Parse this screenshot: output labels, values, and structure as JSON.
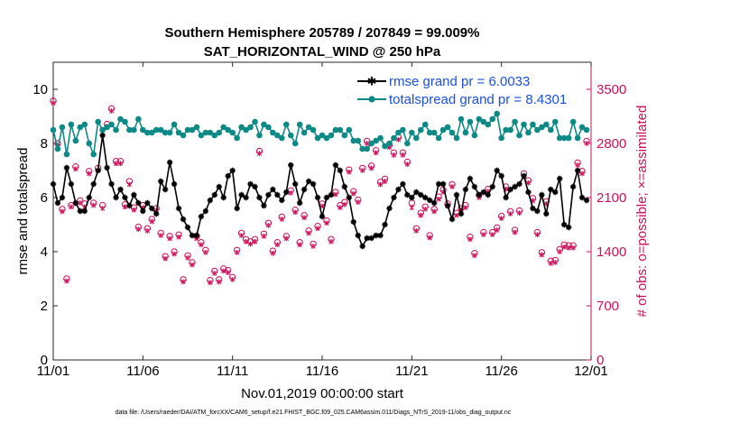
{
  "chart_data": {
    "type": "line",
    "title": "Southern Hemisphere 205789 / 207849 = 99.009%",
    "subtitle": "SAT_HORIZONTAL_WIND @ 250 hPa",
    "xlabel": "Nov.01,2019 00:00:00 start",
    "ylabel": "rmse and totalspread",
    "ylabel_right": "# of obs: o=possible; ×=assimilated",
    "footnote": "data file: /Users/raeder/DAI/ATM_forcXX/CAM6_setup/f.e21.FHIST_BGC.f09_025.CAM6assim.011/Diags_NTrS_2019-11/obs_diag_output.nc",
    "x_tick_labels": [
      "11/01",
      "11/06",
      "11/11",
      "11/16",
      "11/21",
      "11/26",
      "12/01"
    ],
    "x_tick_values": [
      0,
      5,
      10,
      15,
      20,
      25,
      30
    ],
    "xlim": [
      0,
      30
    ],
    "ylim": [
      0,
      11
    ],
    "y_ticks": [
      0,
      2,
      4,
      6,
      8,
      10
    ],
    "ylim_right": [
      0,
      3850
    ],
    "y_ticks_right": [
      0,
      700,
      1400,
      2100,
      2800,
      3500
    ],
    "legend_position": "top-right",
    "colors": {
      "rmse": "#000000",
      "spread": "#0e8a86",
      "obs": "#cc0f5a",
      "legend_text": "#1a4fe0"
    },
    "series": [
      {
        "name": "rmse grand pr = 6.0033",
        "color": "#000000",
        "x": [
          0.0,
          0.25,
          0.5,
          0.75,
          1.0,
          1.25,
          1.5,
          1.75,
          2.0,
          2.25,
          2.5,
          2.75,
          3.0,
          3.25,
          3.5,
          3.75,
          4.0,
          4.25,
          4.5,
          4.75,
          5.0,
          5.25,
          5.5,
          5.75,
          6.0,
          6.25,
          6.5,
          6.75,
          7.0,
          7.25,
          7.5,
          7.75,
          8.0,
          8.25,
          8.5,
          8.75,
          9.0,
          9.25,
          9.5,
          9.75,
          10.0,
          10.25,
          10.5,
          10.75,
          11.0,
          11.25,
          11.5,
          11.75,
          12.0,
          12.25,
          12.5,
          12.75,
          13.0,
          13.25,
          13.5,
          13.75,
          14.0,
          14.25,
          14.5,
          14.75,
          15.0,
          15.25,
          15.5,
          15.75,
          16.0,
          16.25,
          16.5,
          16.75,
          17.0,
          17.25,
          17.5,
          17.75,
          18.0,
          18.25,
          18.5,
          18.75,
          19.0,
          19.25,
          19.5,
          19.75,
          20.0,
          20.25,
          20.5,
          20.75,
          21.0,
          21.25,
          21.5,
          21.75,
          22.0,
          22.25,
          22.5,
          22.75,
          23.0,
          23.25,
          23.5,
          23.75,
          24.0,
          24.25,
          24.5,
          24.75,
          25.0,
          25.25,
          25.5,
          25.75,
          26.0,
          26.25,
          26.5,
          26.75,
          27.0,
          27.25,
          27.5,
          27.75,
          28.0,
          28.25,
          28.5,
          28.75,
          29.0,
          29.25,
          29.5,
          29.75
        ],
        "values": [
          6.5,
          5.8,
          6.0,
          7.1,
          6.5,
          5.8,
          5.5,
          5.5,
          6.0,
          6.5,
          7.0,
          8.3,
          7.1,
          6.5,
          6.0,
          6.3,
          6.0,
          5.7,
          6.1,
          5.8,
          5.5,
          5.8,
          5.6,
          5.4,
          6.6,
          6.3,
          7.3,
          6.5,
          5.6,
          5.2,
          4.9,
          4.6,
          4.6,
          5.3,
          5.5,
          5.9,
          6.1,
          6.4,
          6.0,
          6.8,
          7.0,
          5.6,
          6.1,
          6.0,
          6.5,
          6.4,
          6.0,
          5.7,
          6.1,
          6.3,
          6.1,
          5.9,
          6.2,
          7.2,
          6.5,
          5.8,
          6.3,
          6.6,
          6.5,
          6.0,
          5.3,
          6.0,
          6.1,
          7.2,
          7.0,
          6.4,
          6.0,
          5.1,
          4.6,
          4.2,
          4.5,
          4.5,
          4.6,
          4.6,
          5.0,
          5.6,
          6.0,
          6.3,
          6.5,
          6.1,
          6.0,
          6.2,
          6.1,
          6.0,
          5.9,
          5.8,
          6.5,
          6.5,
          5.7,
          5.2,
          6.1,
          5.4,
          6.3,
          6.7,
          6.4,
          6.1,
          6.2,
          6.1,
          6.4,
          7.0,
          6.8,
          6.0,
          6.3,
          6.4,
          6.5,
          6.8,
          6.2,
          5.6,
          5.5,
          6.1,
          5.4,
          6.3,
          6.2,
          6.7,
          5.0,
          4.9,
          6.4,
          7.0,
          6.0,
          5.9
        ]
      },
      {
        "name": "totalspread grand pr = 8.4301",
        "color": "#0e8a86",
        "x": [
          0.0,
          0.25,
          0.5,
          0.75,
          1.0,
          1.25,
          1.5,
          1.75,
          2.0,
          2.25,
          2.5,
          2.75,
          3.0,
          3.25,
          3.5,
          3.75,
          4.0,
          4.25,
          4.5,
          4.75,
          5.0,
          5.25,
          5.5,
          5.75,
          6.0,
          6.25,
          6.5,
          6.75,
          7.0,
          7.25,
          7.5,
          7.75,
          8.0,
          8.25,
          8.5,
          8.75,
          9.0,
          9.25,
          9.5,
          9.75,
          10.0,
          10.25,
          10.5,
          10.75,
          11.0,
          11.25,
          11.5,
          11.75,
          12.0,
          12.25,
          12.5,
          12.75,
          13.0,
          13.25,
          13.5,
          13.75,
          14.0,
          14.25,
          14.5,
          14.75,
          15.0,
          15.25,
          15.5,
          15.75,
          16.0,
          16.25,
          16.5,
          16.75,
          17.0,
          17.25,
          17.5,
          17.75,
          18.0,
          18.25,
          18.5,
          18.75,
          19.0,
          19.25,
          19.5,
          19.75,
          20.0,
          20.25,
          20.5,
          20.75,
          21.0,
          21.25,
          21.5,
          21.75,
          22.0,
          22.25,
          22.5,
          22.75,
          23.0,
          23.25,
          23.5,
          23.75,
          24.0,
          24.25,
          24.5,
          24.75,
          25.0,
          25.25,
          25.5,
          25.75,
          26.0,
          26.25,
          26.5,
          26.75,
          27.0,
          27.25,
          27.5,
          27.75,
          28.0,
          28.25,
          28.5,
          28.75,
          29.0,
          29.25,
          29.5,
          29.75
        ],
        "values": [
          8.5,
          7.8,
          8.6,
          7.6,
          8.7,
          8.1,
          8.6,
          8.7,
          8.0,
          7.6,
          8.8,
          8.5,
          8.6,
          8.7,
          8.5,
          8.9,
          8.8,
          8.5,
          8.5,
          8.9,
          8.5,
          8.4,
          8.4,
          8.5,
          8.5,
          8.4,
          8.4,
          8.7,
          8.4,
          8.3,
          8.5,
          8.5,
          8.6,
          8.3,
          8.4,
          8.4,
          8.3,
          8.4,
          8.6,
          8.5,
          8.4,
          8.2,
          8.6,
          8.5,
          8.6,
          8.8,
          8.3,
          8.7,
          8.6,
          8.4,
          8.3,
          8.2,
          8.7,
          8.3,
          8.0,
          8.7,
          8.4,
          8.6,
          8.5,
          8.2,
          8.3,
          8.2,
          8.3,
          8.5,
          8.5,
          8.3,
          8.5,
          8.1,
          8.1,
          7.8,
          7.8,
          8.0,
          8.1,
          8.2,
          7.9,
          8.0,
          8.2,
          8.4,
          8.5,
          8.0,
          8.4,
          8.2,
          8.5,
          8.7,
          8.4,
          8.4,
          8.2,
          8.5,
          8.6,
          8.4,
          8.2,
          8.9,
          8.4,
          8.8,
          8.3,
          8.9,
          8.8,
          8.7,
          8.9,
          9.1,
          8.2,
          8.5,
          8.5,
          8.8,
          8.3,
          8.7,
          8.4,
          8.7,
          8.5,
          8.6,
          8.7,
          8.5,
          8.8,
          8.2,
          8.2,
          8.2,
          8.8,
          8.2,
          8.6,
          8.5
        ]
      },
      {
        "name": "obs possible",
        "axis": "right",
        "marker": "circle",
        "x": [
          0.0,
          0.25,
          0.5,
          0.75,
          1.0,
          1.25,
          1.5,
          1.75,
          2.0,
          2.25,
          2.5,
          2.75,
          3.0,
          3.25,
          3.5,
          3.75,
          4.0,
          4.25,
          4.5,
          4.75,
          5.0,
          5.25,
          5.5,
          5.75,
          6.0,
          6.25,
          6.5,
          6.75,
          7.0,
          7.25,
          7.5,
          7.75,
          8.0,
          8.25,
          8.5,
          8.75,
          9.0,
          9.25,
          9.5,
          9.75,
          10.0,
          10.25,
          10.5,
          10.75,
          11.0,
          11.25,
          11.5,
          11.75,
          12.0,
          12.25,
          12.5,
          12.75,
          13.0,
          13.25,
          13.5,
          13.75,
          14.0,
          14.25,
          14.5,
          14.75,
          15.0,
          15.25,
          15.5,
          15.75,
          16.0,
          16.25,
          16.5,
          16.75,
          17.0,
          17.25,
          17.5,
          17.75,
          18.0,
          18.25,
          18.5,
          18.75,
          19.0,
          19.25,
          19.5,
          19.75,
          20.0,
          20.25,
          20.5,
          20.75,
          21.0,
          21.25,
          21.5,
          21.75,
          22.0,
          22.25,
          22.5,
          22.75,
          23.0,
          23.25,
          23.5,
          23.75,
          24.0,
          24.25,
          24.5,
          24.75,
          25.0,
          25.25,
          25.5,
          25.75,
          26.0,
          26.25,
          26.5,
          26.75,
          27.0,
          27.25,
          27.5,
          27.75,
          28.0,
          28.25,
          28.5,
          28.75,
          29.0,
          29.25,
          29.5,
          29.75
        ],
        "values": [
          3350,
          2800,
          1950,
          1050,
          2000,
          2500,
          2060,
          2020,
          2440,
          2030,
          2480,
          2000,
          3050,
          3250,
          2570,
          2570,
          2010,
          2310,
          1970,
          1720,
          2000,
          1700,
          1820,
          1960,
          1640,
          1340,
          1600,
          1400,
          1620,
          1040,
          1350,
          1260,
          1600,
          1520,
          1420,
          1030,
          1150,
          1040,
          1180,
          1160,
          1070,
          1420,
          1640,
          1560,
          1530,
          1560,
          2700,
          1630,
          1770,
          1410,
          1520,
          1850,
          1600,
          2190,
          1940,
          1520,
          1870,
          1670,
          1500,
          1730,
          2020,
          1800,
          1560,
          2170,
          2000,
          2040,
          2460,
          2180,
          2070,
          2480,
          2830,
          2510,
          2710,
          2300,
          2340,
          2780,
          2680,
          2880,
          2680,
          2560,
          2030,
          1700,
          1900,
          1980,
          1610,
          1950,
          2110,
          2200,
          2020,
          2270,
          1900,
          1960,
          2000,
          1590,
          1380,
          2130,
          1650,
          2210,
          1650,
          1710,
          1860,
          2240,
          1920,
          1680,
          1930,
          2410,
          2320,
          2090,
          1650,
          1390,
          2050,
          1280,
          1290,
          1430,
          1490,
          1480,
          1480,
          2550,
          2440,
          2830
        ]
      },
      {
        "name": "obs assimilated",
        "axis": "right",
        "marker": "x",
        "x": [
          0.0,
          0.25,
          0.5,
          0.75,
          1.0,
          1.25,
          1.5,
          1.75,
          2.0,
          2.25,
          2.5,
          2.75,
          3.0,
          3.25,
          3.5,
          3.75,
          4.0,
          4.25,
          4.5,
          4.75,
          5.0,
          5.25,
          5.5,
          5.75,
          6.0,
          6.25,
          6.5,
          6.75,
          7.0,
          7.25,
          7.5,
          7.75,
          8.0,
          8.25,
          8.5,
          8.75,
          9.0,
          9.25,
          9.5,
          9.75,
          10.0,
          10.25,
          10.5,
          10.75,
          11.0,
          11.25,
          11.5,
          11.75,
          12.0,
          12.25,
          12.5,
          12.75,
          13.0,
          13.25,
          13.5,
          13.75,
          14.0,
          14.25,
          14.5,
          14.75,
          15.0,
          15.25,
          15.5,
          15.75,
          16.0,
          16.25,
          16.5,
          16.75,
          17.0,
          17.25,
          17.5,
          17.75,
          18.0,
          18.25,
          18.5,
          18.75,
          19.0,
          19.25,
          19.5,
          19.75,
          20.0,
          20.25,
          20.5,
          20.75,
          21.0,
          21.25,
          21.5,
          21.75,
          22.0,
          22.25,
          22.5,
          22.75,
          23.0,
          23.25,
          23.5,
          23.75,
          24.0,
          24.25,
          24.5,
          24.75,
          25.0,
          25.25,
          25.5,
          25.75,
          26.0,
          26.25,
          26.5,
          26.75,
          27.0,
          27.25,
          27.5,
          27.75,
          28.0,
          28.25,
          28.5,
          28.75,
          29.0,
          29.25,
          29.5,
          29.75
        ],
        "values": [
          3320,
          2760,
          1920,
          1020,
          1980,
          2470,
          2030,
          1980,
          2410,
          2000,
          2450,
          1960,
          3020,
          3220,
          2540,
          2540,
          1980,
          2270,
          1940,
          1690,
          1970,
          1670,
          1790,
          1930,
          1610,
          1310,
          1570,
          1370,
          1590,
          1010,
          1320,
          1230,
          1570,
          1490,
          1390,
          1000,
          1120,
          1010,
          1150,
          1130,
          1040,
          1390,
          1610,
          1530,
          1500,
          1530,
          2670,
          1600,
          1740,
          1380,
          1490,
          1820,
          1570,
          2160,
          1910,
          1490,
          1840,
          1640,
          1470,
          1700,
          1990,
          1770,
          1530,
          2140,
          1970,
          2010,
          2430,
          2150,
          2040,
          2450,
          2800,
          2480,
          2680,
          2270,
          2310,
          2750,
          2650,
          2850,
          2650,
          2530,
          1970,
          1670,
          1870,
          1950,
          1580,
          1920,
          2080,
          2170,
          1990,
          2240,
          1870,
          1930,
          1970,
          1560,
          1350,
          2100,
          1620,
          2180,
          1620,
          1680,
          1830,
          2210,
          1890,
          1650,
          1900,
          2380,
          2290,
          2060,
          1620,
          1360,
          2020,
          1250,
          1260,
          1400,
          1460,
          1450,
          1450,
          2520,
          2410,
          2800
        ]
      }
    ]
  }
}
